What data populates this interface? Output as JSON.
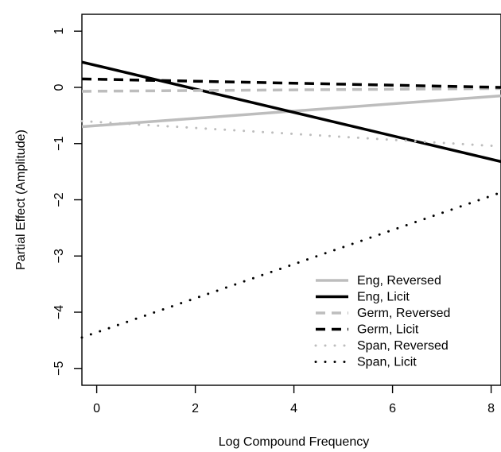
{
  "chart_data": {
    "type": "line",
    "title": "",
    "xlabel": "Log Compound Frequency",
    "ylabel": "Partial Effect (Amplitude)",
    "xlim": [
      -0.3,
      8.2
    ],
    "ylim": [
      -5.3,
      1.3
    ],
    "grid": false,
    "x_ticks": [
      {
        "value": 0,
        "label": "0"
      },
      {
        "value": 2,
        "label": "2"
      },
      {
        "value": 4,
        "label": "4"
      },
      {
        "value": 6,
        "label": "6"
      },
      {
        "value": 8,
        "label": "8"
      }
    ],
    "y_ticks": [
      {
        "value": 1,
        "label": "1"
      },
      {
        "value": 0,
        "label": "0"
      },
      {
        "value": -1,
        "label": "−1"
      },
      {
        "value": -2,
        "label": "−2"
      },
      {
        "value": -3,
        "label": "−3"
      },
      {
        "value": -4,
        "label": "−4"
      },
      {
        "value": -5,
        "label": "−5"
      }
    ],
    "legend_position": "bottom-right",
    "series": [
      {
        "name": "Eng, Reversed",
        "x": [
          -0.3,
          8.2
        ],
        "y": [
          -0.7,
          -0.15
        ],
        "color": "#bdbdbd",
        "style": "solid"
      },
      {
        "name": "Eng, Licit",
        "x": [
          -0.3,
          8.2
        ],
        "y": [
          0.45,
          -1.32
        ],
        "color": "#000000",
        "style": "solid"
      },
      {
        "name": "Germ, Reversed",
        "x": [
          -0.3,
          8.2
        ],
        "y": [
          -0.07,
          -0.02
        ],
        "color": "#bdbdbd",
        "style": "dashed"
      },
      {
        "name": "Germ, Licit",
        "x": [
          -0.3,
          8.2
        ],
        "y": [
          0.15,
          0.0
        ],
        "color": "#000000",
        "style": "dashed"
      },
      {
        "name": "Span, Reversed",
        "x": [
          -0.3,
          8.2
        ],
        "y": [
          -0.6,
          -1.05
        ],
        "color": "#bdbdbd",
        "style": "dotted"
      },
      {
        "name": "Span, Licit",
        "x": [
          -0.3,
          8.2
        ],
        "y": [
          -4.45,
          -1.87
        ],
        "color": "#000000",
        "style": "dotted"
      }
    ]
  }
}
